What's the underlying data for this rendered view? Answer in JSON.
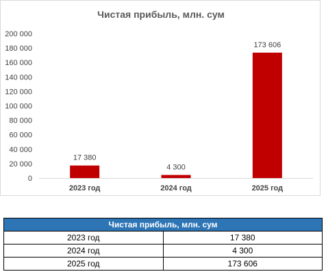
{
  "chart_data": {
    "type": "bar",
    "title": "Чистая прибыль, млн. сум",
    "categories": [
      "2023 год",
      "2024 год",
      "2025 год"
    ],
    "values": [
      17380,
      4300,
      173606
    ],
    "data_labels": [
      "17 380",
      "4 300",
      "173 606"
    ],
    "ylim": [
      0,
      200000
    ],
    "yticks": [
      0,
      20000,
      40000,
      60000,
      80000,
      100000,
      120000,
      140000,
      160000,
      180000,
      200000
    ],
    "ytick_labels": [
      "0",
      "20 000",
      "40 000",
      "60 000",
      "80 000",
      "100 000",
      "120 000",
      "140 000",
      "160 000",
      "180 000",
      "200 000"
    ],
    "bar_color": "#c00000",
    "grid": false,
    "legend": "none"
  },
  "table": {
    "header": "Чистая прибыль, млн. сум",
    "header_color": "#2e75b6",
    "rows": [
      {
        "year": "2023 год",
        "value": "17 380"
      },
      {
        "year": "2024 год",
        "value": "4 300"
      },
      {
        "year": "2025 год",
        "value": "173 606"
      }
    ]
  }
}
